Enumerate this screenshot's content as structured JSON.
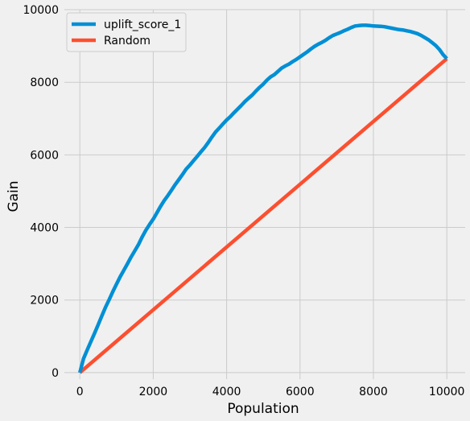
{
  "chart_data": {
    "type": "line",
    "xlabel": "Population",
    "ylabel": "Gain",
    "xlim": [
      -420,
      10500
    ],
    "ylim": [
      -180,
      10000
    ],
    "xticks": [
      0,
      2000,
      4000,
      6000,
      8000,
      10000
    ],
    "yticks": [
      0,
      2000,
      4000,
      6000,
      8000,
      10000
    ],
    "grid": true,
    "legend_position": "top-left",
    "background": "#f0f0f0",
    "series": [
      {
        "name": "uplift_score_1",
        "color": "#008fd5",
        "x": [
          0,
          100,
          200,
          300,
          400,
          500,
          600,
          700,
          800,
          900,
          1000,
          1100,
          1200,
          1300,
          1400,
          1500,
          1600,
          1700,
          1800,
          1900,
          2000,
          2100,
          2200,
          2300,
          2400,
          2500,
          2600,
          2700,
          2800,
          2900,
          3000,
          3100,
          3200,
          3300,
          3400,
          3500,
          3600,
          3700,
          3800,
          3900,
          4000,
          4100,
          4200,
          4300,
          4400,
          4500,
          4600,
          4700,
          4800,
          4900,
          5000,
          5100,
          5200,
          5300,
          5400,
          5500,
          5600,
          5700,
          5800,
          5900,
          6000,
          6100,
          6200,
          6300,
          6400,
          6500,
          6600,
          6700,
          6800,
          6900,
          7000,
          7100,
          7200,
          7300,
          7400,
          7500,
          7600,
          7700,
          7800,
          7900,
          8000,
          8100,
          8200,
          8300,
          8400,
          8500,
          8600,
          8700,
          8800,
          8900,
          9000,
          9100,
          9200,
          9300,
          9400,
          9500,
          9600,
          9700,
          9800,
          9900,
          10000
        ],
        "y": [
          0,
          380,
          620,
          850,
          1080,
          1320,
          1560,
          1800,
          2010,
          2230,
          2440,
          2640,
          2820,
          3000,
          3190,
          3360,
          3530,
          3740,
          3920,
          4080,
          4230,
          4400,
          4580,
          4740,
          4880,
          5030,
          5180,
          5320,
          5460,
          5610,
          5720,
          5840,
          5960,
          6080,
          6200,
          6340,
          6490,
          6630,
          6740,
          6850,
          6960,
          7050,
          7160,
          7260,
          7360,
          7470,
          7560,
          7650,
          7760,
          7860,
          7950,
          8060,
          8150,
          8210,
          8300,
          8390,
          8450,
          8500,
          8570,
          8630,
          8700,
          8770,
          8840,
          8920,
          8990,
          9050,
          9100,
          9160,
          9230,
          9290,
          9330,
          9370,
          9420,
          9460,
          9510,
          9550,
          9560,
          9570,
          9570,
          9560,
          9550,
          9545,
          9540,
          9530,
          9510,
          9490,
          9470,
          9450,
          9440,
          9420,
          9400,
          9370,
          9340,
          9290,
          9230,
          9170,
          9090,
          9010,
          8900,
          8760,
          8650
        ]
      },
      {
        "name": "Random",
        "color": "#fc4f30",
        "x": [
          0,
          10000
        ],
        "y": [
          0,
          8650
        ]
      }
    ]
  }
}
